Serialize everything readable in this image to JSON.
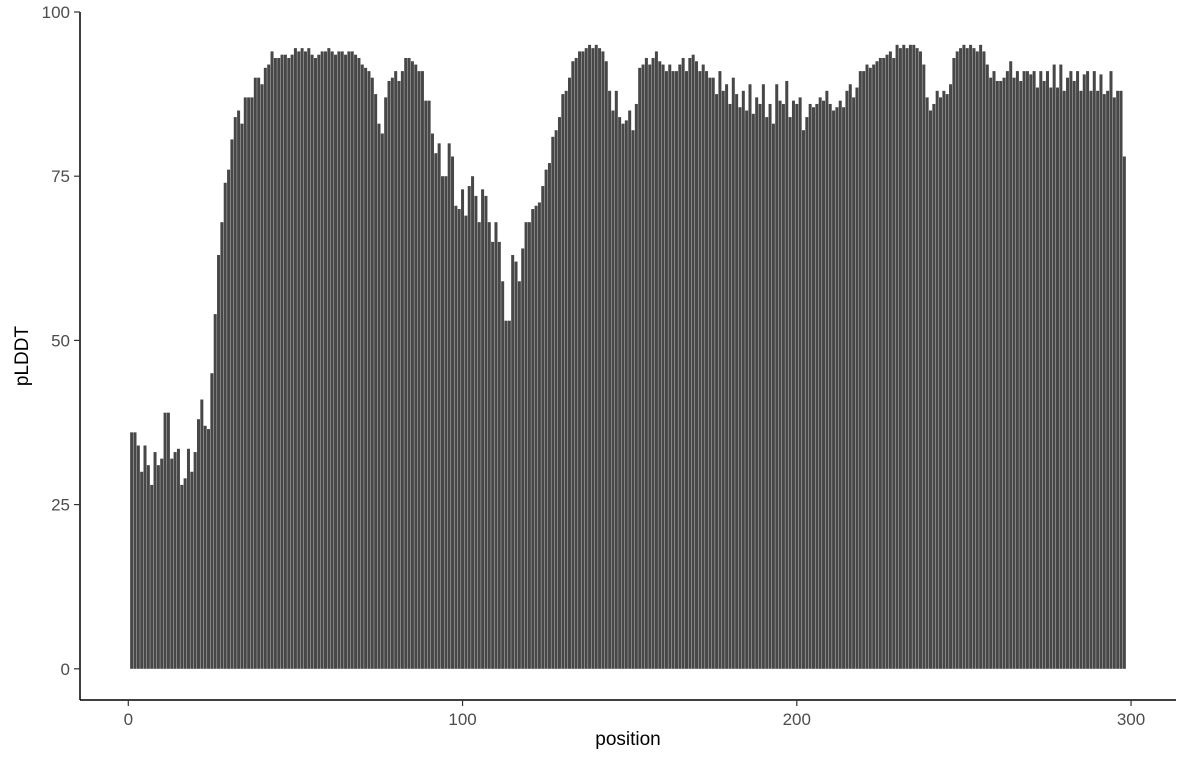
{
  "chart_data": {
    "type": "bar",
    "x_label": "position",
    "y_label": "pLDDT",
    "color": "#474747",
    "xlim": [
      -14.45,
      313.45
    ],
    "ylim": [
      -4.75,
      100
    ],
    "xticks": [
      0,
      100,
      200,
      300
    ],
    "yticks": [
      0,
      25,
      50,
      75,
      100
    ],
    "grid": false,
    "x": [
      1,
      2,
      3,
      4,
      5,
      6,
      7,
      8,
      9,
      10,
      11,
      12,
      13,
      14,
      15,
      16,
      17,
      18,
      19,
      20,
      21,
      22,
      23,
      24,
      25,
      26,
      27,
      28,
      29,
      30,
      31,
      32,
      33,
      34,
      35,
      36,
      37,
      38,
      39,
      40,
      41,
      42,
      43,
      44,
      45,
      46,
      47,
      48,
      49,
      50,
      51,
      52,
      53,
      54,
      55,
      56,
      57,
      58,
      59,
      60,
      61,
      62,
      63,
      64,
      65,
      66,
      67,
      68,
      69,
      70,
      71,
      72,
      73,
      74,
      75,
      76,
      77,
      78,
      79,
      80,
      81,
      82,
      83,
      84,
      85,
      86,
      87,
      88,
      89,
      90,
      91,
      92,
      93,
      94,
      95,
      96,
      97,
      98,
      99,
      100,
      101,
      102,
      103,
      104,
      105,
      106,
      107,
      108,
      109,
      110,
      111,
      112,
      113,
      114,
      115,
      116,
      117,
      118,
      119,
      120,
      121,
      122,
      123,
      124,
      125,
      126,
      127,
      128,
      129,
      130,
      131,
      132,
      133,
      134,
      135,
      136,
      137,
      138,
      139,
      140,
      141,
      142,
      143,
      144,
      145,
      146,
      147,
      148,
      149,
      150,
      151,
      152,
      153,
      154,
      155,
      156,
      157,
      158,
      159,
      160,
      161,
      162,
      163,
      164,
      165,
      166,
      167,
      168,
      169,
      170,
      171,
      172,
      173,
      174,
      175,
      176,
      177,
      178,
      179,
      180,
      181,
      182,
      183,
      184,
      185,
      186,
      187,
      188,
      189,
      190,
      191,
      192,
      193,
      194,
      195,
      196,
      197,
      198,
      199,
      200,
      201,
      202,
      203,
      204,
      205,
      206,
      207,
      208,
      209,
      210,
      211,
      212,
      213,
      214,
      215,
      216,
      217,
      218,
      219,
      220,
      221,
      222,
      223,
      224,
      225,
      226,
      227,
      228,
      229,
      230,
      231,
      232,
      233,
      234,
      235,
      236,
      237,
      238,
      239,
      240,
      241,
      242,
      243,
      244,
      245,
      246,
      247,
      248,
      249,
      250,
      251,
      252,
      253,
      254,
      255,
      256,
      257,
      258,
      259,
      260,
      261,
      262,
      263,
      264,
      265,
      266,
      267,
      268,
      269,
      270,
      271,
      272,
      273,
      274,
      275,
      276,
      277,
      278,
      279,
      280,
      281,
      282,
      283,
      284,
      285,
      286,
      287,
      288,
      289,
      290,
      291,
      292,
      293,
      294,
      295,
      296,
      297,
      298
    ],
    "values": [
      36,
      36,
      34,
      30,
      34,
      31,
      28,
      33,
      31,
      32,
      39,
      39,
      32,
      33,
      33.5,
      28,
      29,
      33.5,
      30,
      33,
      38,
      41,
      37,
      36.5,
      45,
      54,
      63,
      68,
      74,
      76,
      80.6,
      84,
      85,
      83,
      87,
      87,
      87,
      90,
      90,
      89,
      91.5,
      92,
      94,
      93,
      93,
      93.5,
      93.5,
      93,
      93.5,
      94.5,
      94,
      94.5,
      94,
      94.5,
      93.5,
      93,
      93.5,
      94,
      94,
      94.5,
      94,
      93.5,
      94,
      94,
      93.5,
      94,
      94,
      93.5,
      93,
      92,
      91.5,
      91,
      90,
      87.5,
      83,
      81.5,
      87,
      89.5,
      90,
      91,
      89.5,
      91,
      93,
      93,
      92.5,
      92,
      91,
      91,
      86.5,
      86.5,
      81.5,
      78.5,
      80,
      75,
      75,
      80,
      78,
      70.5,
      70,
      73,
      69,
      73.5,
      75,
      72,
      68,
      73,
      72,
      68,
      65,
      68,
      65,
      59,
      53,
      53,
      63,
      62,
      59,
      64,
      68,
      68,
      70,
      70.5,
      71,
      73.5,
      76,
      77,
      81,
      82,
      84,
      87.5,
      88,
      90,
      92.5,
      93,
      94,
      94,
      94.5,
      95,
      94.5,
      95,
      94.5,
      94,
      92.5,
      88,
      85,
      88,
      84,
      83,
      83.5,
      85,
      82,
      86,
      91.5,
      92,
      93,
      92,
      93,
      94,
      92.5,
      92,
      91,
      92,
      91,
      91,
      92,
      93,
      91,
      93,
      93.5,
      92.5,
      91,
      92,
      91,
      90,
      90,
      87.5,
      91,
      88,
      89,
      86,
      90,
      87.5,
      85.5,
      88,
      85,
      89,
      84.5,
      87,
      86,
      89,
      84,
      86,
      83,
      89,
      86.5,
      86,
      89.5,
      84,
      86.5,
      86,
      87,
      82,
      84,
      86,
      85.5,
      86,
      87,
      86.5,
      88,
      86,
      85,
      85.5,
      86.5,
      85.5,
      88,
      89,
      87,
      88.5,
      91,
      91,
      92,
      91.5,
      92,
      92.5,
      93,
      93,
      93.5,
      94,
      93,
      95,
      94.5,
      95,
      94.5,
      95,
      95,
      94.5,
      94,
      92,
      87,
      85,
      86,
      88,
      87,
      88,
      87.5,
      89,
      93,
      94,
      94.5,
      95,
      94.5,
      95,
      94.5,
      94,
      95,
      94,
      92,
      90,
      91,
      89.5,
      89.5,
      90,
      91,
      92.5,
      90,
      91,
      89.5,
      91,
      91,
      90.5,
      91,
      88.5,
      91,
      89.5,
      91,
      88.5,
      92,
      88.5,
      92,
      88,
      90,
      91,
      89.5,
      91,
      88,
      90.5,
      91,
      88,
      91,
      88,
      90.5,
      87.5,
      88,
      91,
      87,
      88,
      88,
      78
    ]
  }
}
